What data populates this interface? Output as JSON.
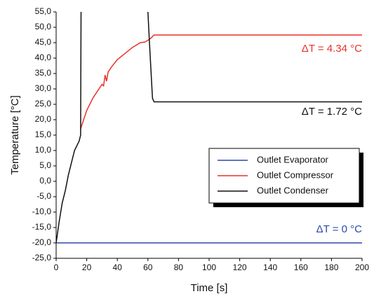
{
  "chart_data": {
    "type": "line",
    "x_label": "Time [s]",
    "y_label": "Temperature [°C]",
    "xlim": [
      0,
      200
    ],
    "xticks": [
      0,
      20,
      40,
      60,
      80,
      100,
      120,
      140,
      160,
      180,
      200
    ],
    "ylim": [
      -25,
      55
    ],
    "yticks": [
      {
        "value": -25,
        "label": "-25,0"
      },
      {
        "value": -20,
        "label": "-20,0"
      },
      {
        "value": -15,
        "label": "-15,0"
      },
      {
        "value": -10,
        "label": "-10,0"
      },
      {
        "value": -5,
        "label": "-5,0"
      },
      {
        "value": 0,
        "label": "0,0"
      },
      {
        "value": 5,
        "label": "5,0"
      },
      {
        "value": 10,
        "label": "10,0"
      },
      {
        "value": 15,
        "label": "15,0"
      },
      {
        "value": 20,
        "label": "20,0"
      },
      {
        "value": 25,
        "label": "25,0"
      },
      {
        "value": 30,
        "label": "30,0"
      },
      {
        "value": 35,
        "label": "35,0"
      },
      {
        "value": 40,
        "label": "40,0"
      },
      {
        "value": 45,
        "label": "45,0"
      },
      {
        "value": 50,
        "label": "50,0"
      },
      {
        "value": 55,
        "label": "55,0"
      }
    ],
    "series": [
      {
        "name": "Outlet Evaporator",
        "color": "#2a48a8",
        "annotation": "ΔT = 0 °C",
        "x": [
          0,
          200
        ],
        "values": [
          -20,
          -20
        ]
      },
      {
        "name": "Outlet Compressor",
        "color": "#e8312a",
        "annotation": "ΔT = 4.34 °C",
        "x": [
          16,
          18,
          20,
          22,
          24,
          26,
          28,
          30,
          31,
          32,
          33,
          34,
          36,
          40,
          45,
          50,
          55,
          58,
          60,
          62,
          64,
          200
        ],
        "values": [
          17,
          20,
          23,
          25,
          27,
          28.5,
          30,
          31.5,
          31,
          34.5,
          32.5,
          35.5,
          37,
          39.5,
          41.5,
          43.5,
          45,
          45.2,
          45.8,
          46.5,
          47.5,
          47.5
        ]
      },
      {
        "name": "Outlet Condenser",
        "color": "#111111",
        "annotation": "ΔT = 1.72 °C",
        "x": [
          0,
          2,
          4,
          6,
          8,
          10,
          12,
          14,
          15,
          16,
          16.3,
          38,
          60,
          61,
          63,
          64,
          200
        ],
        "values": [
          -20,
          -13,
          -7,
          -3,
          2,
          6,
          10,
          12,
          13,
          15,
          55,
          null,
          55,
          45,
          27,
          25.8,
          25.8
        ]
      }
    ]
  }
}
